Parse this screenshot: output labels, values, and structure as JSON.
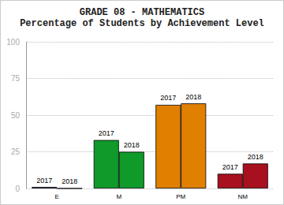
{
  "chart_data": {
    "type": "bar",
    "title": "GRADE 08 - MATHEMATICS",
    "subtitle": "Percentage of Students by Achievement Level",
    "categories": [
      "E",
      "M",
      "PM",
      "NM"
    ],
    "series": [
      {
        "name": "2017",
        "values": [
          1,
          33,
          57,
          10
        ]
      },
      {
        "name": "2018",
        "values": [
          0,
          25,
          58,
          17
        ]
      }
    ],
    "colors": [
      "#1a3a8f",
      "#0f9a2a",
      "#e07f00",
      "#a8101f"
    ],
    "ylim": [
      0,
      100
    ],
    "yticks": [
      0,
      25,
      50,
      75,
      100
    ],
    "grid": true
  }
}
